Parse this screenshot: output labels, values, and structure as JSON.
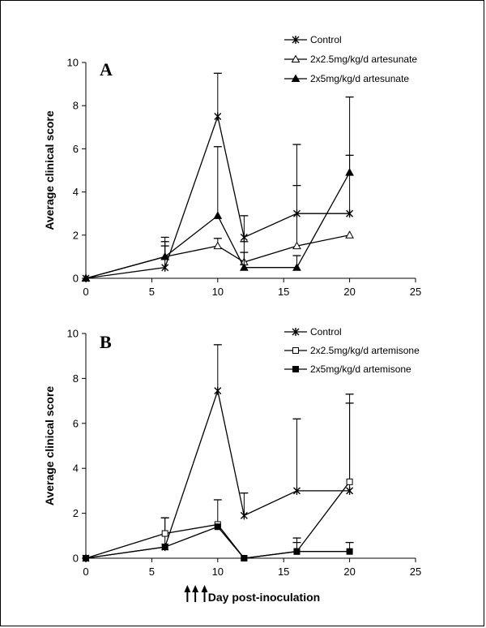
{
  "chart_data": [
    {
      "type": "line",
      "panel_label": "A",
      "ylabel": "Average clinical score",
      "xlabel": "",
      "xlim": [
        0,
        25
      ],
      "ylim": [
        0,
        10
      ],
      "x_ticks": [
        0,
        5,
        10,
        15,
        20,
        25
      ],
      "y_ticks": [
        0,
        2,
        4,
        6,
        8,
        10
      ],
      "legend_position": "top-right",
      "series": [
        {
          "name": "Control",
          "marker": "asterisk",
          "x": [
            0,
            6,
            10,
            12,
            16,
            20
          ],
          "y": [
            0,
            0.5,
            7.5,
            1.9,
            3.0,
            3.0
          ],
          "err": [
            0,
            1.0,
            2.0,
            1.0,
            3.2,
            2.7
          ]
        },
        {
          "name": "2x2.5mg/kg/d artesunate",
          "marker": "triangle-open",
          "x": [
            0,
            6,
            10,
            12,
            16,
            20
          ],
          "y": [
            0,
            1.0,
            1.5,
            0.75,
            1.5,
            2.0
          ],
          "err": [
            0,
            0.7,
            0.35,
            0.45,
            2.8,
            0
          ]
        },
        {
          "name": "2x5mg/kg/d artesunate",
          "marker": "triangle-filled",
          "x": [
            0,
            6,
            10,
            12,
            16,
            20
          ],
          "y": [
            0,
            1.0,
            2.9,
            0.5,
            0.5,
            4.9
          ],
          "err": [
            0,
            0.9,
            3.2,
            1.2,
            0.55,
            3.5
          ]
        }
      ]
    },
    {
      "type": "line",
      "panel_label": "B",
      "ylabel": "Average clinical score",
      "xlabel": "Day post-inoculation",
      "xlim": [
        0,
        25
      ],
      "ylim": [
        0,
        10
      ],
      "x_ticks": [
        0,
        5,
        10,
        15,
        20,
        25
      ],
      "y_ticks": [
        0,
        2,
        4,
        6,
        8,
        10
      ],
      "legend_position": "top-right",
      "treatment_arrows_x": [
        7.7,
        8.3,
        9.0
      ],
      "series": [
        {
          "name": "Control",
          "marker": "asterisk",
          "x": [
            0,
            6,
            10,
            12,
            16,
            20
          ],
          "y": [
            0,
            0.5,
            7.45,
            1.9,
            3.0,
            3.0
          ],
          "err": [
            0,
            1.3,
            2.05,
            1.0,
            3.2,
            3.9
          ]
        },
        {
          "name": "2x2.5mg/kg/d artemisone",
          "marker": "square-open",
          "x": [
            0,
            6,
            10,
            12,
            16,
            20
          ],
          "y": [
            0,
            1.1,
            1.5,
            0.0,
            0.3,
            3.4
          ],
          "err": [
            0,
            0.7,
            1.1,
            0,
            0.6,
            3.9
          ]
        },
        {
          "name": "2x5mg/kg/d artemisone",
          "marker": "square-filled",
          "x": [
            0,
            6,
            10,
            12,
            16,
            20
          ],
          "y": [
            0,
            0.5,
            1.4,
            0.0,
            0.3,
            0.3
          ],
          "err": [
            0,
            0,
            0,
            0,
            0.4,
            0.4
          ]
        }
      ]
    }
  ]
}
